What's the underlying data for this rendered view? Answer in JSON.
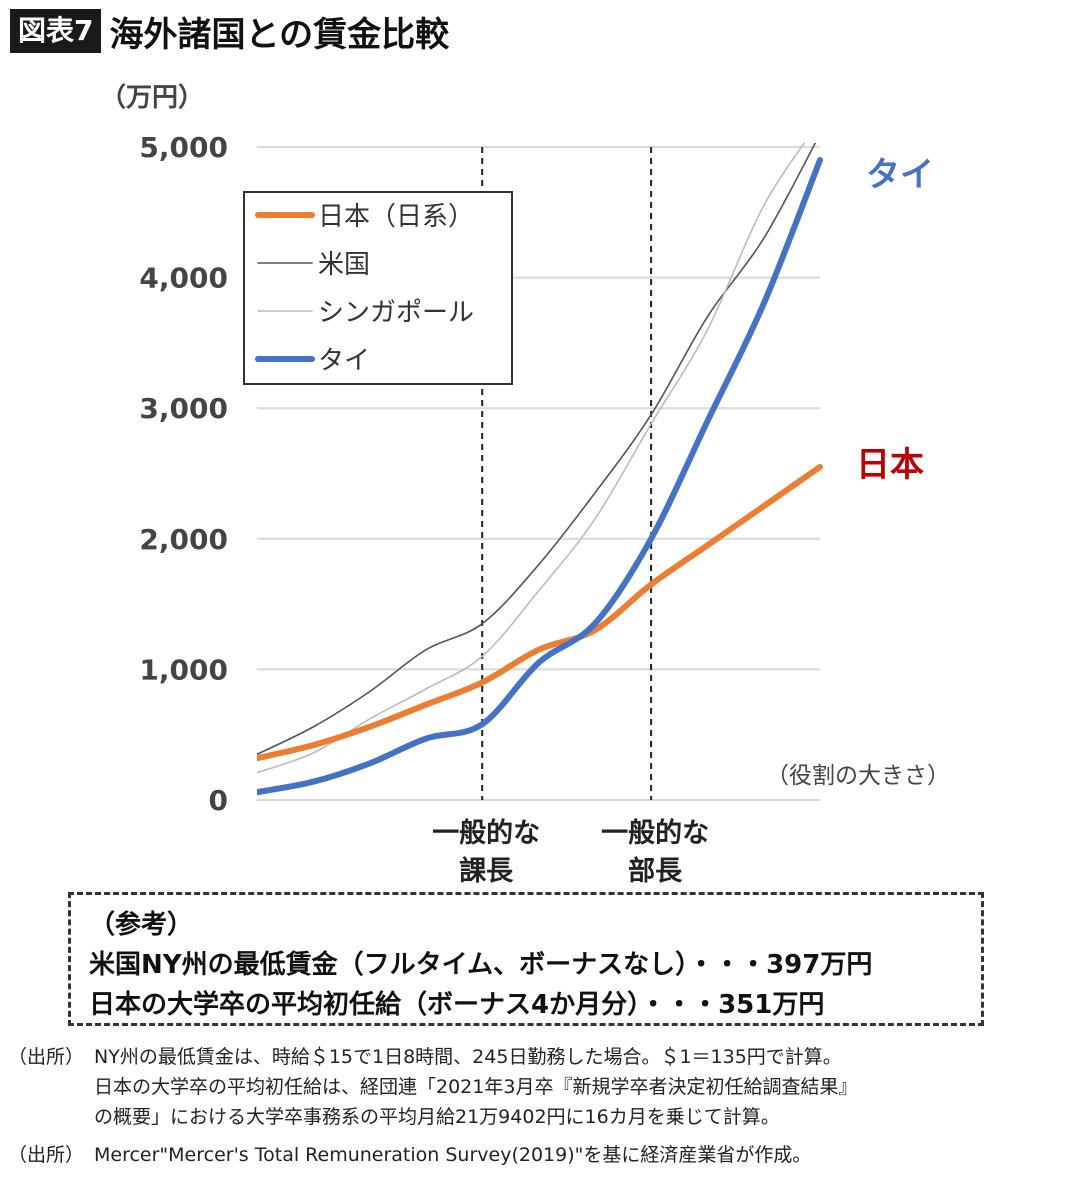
{
  "header": {
    "badge": "図表7",
    "title": "海外諸国との賃金比較"
  },
  "chart_data": {
    "type": "line",
    "ylabel": "（万円）",
    "xlabel": "（役割の大きさ）",
    "ylim": [
      0,
      5000
    ],
    "yticks": [
      "0",
      "1,000",
      "2,000",
      "3,000",
      "4,000",
      "5,000"
    ],
    "ytick_values": [
      0,
      1000,
      2000,
      3000,
      4000,
      5000
    ],
    "grid": true,
    "legend_position": "top-left",
    "x": [
      0,
      1,
      2,
      3,
      4,
      5,
      6,
      7,
      8,
      9,
      10
    ],
    "series": [
      {
        "name": "日本（日系）",
        "color": "#ED7D31",
        "width": 6,
        "values": [
          320,
          420,
          560,
          730,
          900,
          1150,
          1300,
          1650,
          1950,
          2250,
          2550
        ]
      },
      {
        "name": "米国",
        "color": "#555555",
        "width": 1.6,
        "values": [
          350,
          560,
          830,
          1150,
          1350,
          1800,
          2350,
          2950,
          3700,
          4300,
          5100
        ]
      },
      {
        "name": "シンガポール",
        "color": "#BBBBBB",
        "width": 1.6,
        "values": [
          210,
          360,
          620,
          850,
          1100,
          1600,
          2150,
          2880,
          3600,
          4550,
          5200
        ]
      },
      {
        "name": "タイ",
        "color": "#4472C4",
        "width": 6,
        "values": [
          60,
          140,
          280,
          470,
          580,
          1050,
          1350,
          2000,
          2900,
          3800,
          4900
        ]
      }
    ],
    "markers": [
      {
        "x": 4,
        "label_lines": [
          "一般的な",
          "課長"
        ]
      },
      {
        "x": 7,
        "label_lines": [
          "一般的な",
          "部長"
        ]
      }
    ],
    "annotations": [
      {
        "text": "タイ",
        "color": "#4472C4"
      },
      {
        "text": "日本",
        "color": "#C00000"
      }
    ]
  },
  "reference": {
    "heading": "（参考）",
    "line1": "米国NY州の最低賃金（フルタイム、ボーナスなし）・・・397万円",
    "line2": "日本の大学卒の平均初任給（ボーナス4か月分）・・・351万円"
  },
  "notes": {
    "label1": "（出所）",
    "lines1": [
      "NY州の最低賃金は、時給＄15で1日8時間、245日勤務した場合。＄1＝135円で計算。",
      "日本の大学卒の平均初任給は、経団連「2021年3月卒『新規学卒者決定初任給調査結果』",
      "の概要」における大学卒事務系の平均月給21万9402円に16カ月を乗じて計算。"
    ],
    "label2": "（出所）",
    "line2": "Mercer\"Mercer's Total Remuneration Survey(2019)\"を基に経済産業省が作成。"
  }
}
